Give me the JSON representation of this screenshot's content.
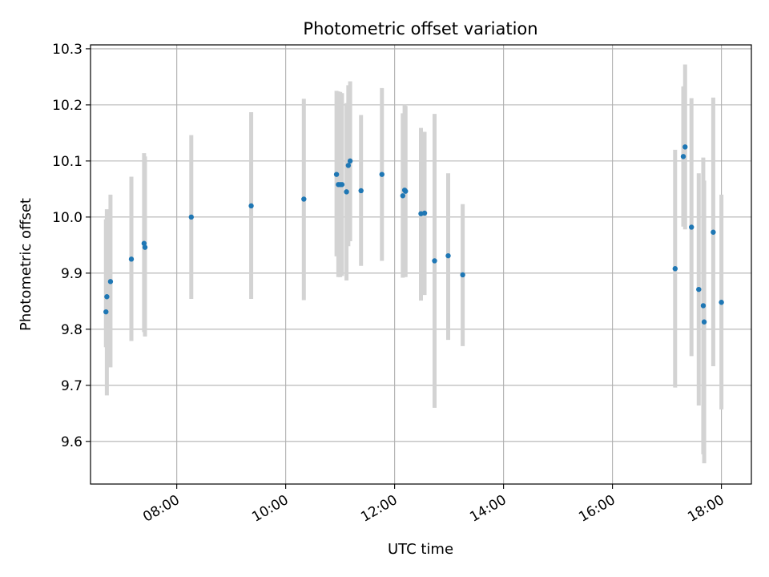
{
  "chart_data": {
    "type": "scatter",
    "title": "Photometric offset variation",
    "xlabel": "UTC time",
    "ylabel": "Photometric offset",
    "xlim": [
      "06:25",
      "18:33"
    ],
    "ylim": [
      9.524,
      10.307
    ],
    "x_ticks": [
      "08:00",
      "10:00",
      "12:00",
      "14:00",
      "16:00",
      "18:00"
    ],
    "y_ticks": [
      "9.6",
      "9.7",
      "9.8",
      "9.9",
      "10.0",
      "10.1",
      "10.2",
      "10.3"
    ],
    "grid": true,
    "colors": {
      "points": "#1f77b4",
      "errorbars": "#d3d3d3",
      "grid": "#b0b0b0"
    },
    "series": [
      {
        "points": [
          {
            "x": "06:42",
            "y": 9.831,
            "err_low": 9.768,
            "err_high": 9.996
          },
          {
            "x": "06:43",
            "y": 9.858,
            "err_low": 9.682,
            "err_high": 10.014
          },
          {
            "x": "06:47",
            "y": 9.885,
            "err_low": 9.732,
            "err_high": 10.04
          },
          {
            "x": "07:10",
            "y": 9.925,
            "err_low": 9.779,
            "err_high": 10.072
          },
          {
            "x": "07:24",
            "y": 9.953,
            "err_low": 9.795,
            "err_high": 10.114
          },
          {
            "x": "07:25",
            "y": 9.946,
            "err_low": 9.787,
            "err_high": 10.108
          },
          {
            "x": "08:16",
            "y": 10.0,
            "err_low": 9.854,
            "err_high": 10.146
          },
          {
            "x": "09:22",
            "y": 10.02,
            "err_low": 9.854,
            "err_high": 10.187
          },
          {
            "x": "10:20",
            "y": 10.032,
            "err_low": 9.852,
            "err_high": 10.211
          },
          {
            "x": "10:56",
            "y": 10.076,
            "err_low": 9.93,
            "err_high": 10.225
          },
          {
            "x": "10:58",
            "y": 10.058,
            "err_low": 9.893,
            "err_high": 10.224
          },
          {
            "x": "11:00",
            "y": 10.058,
            "err_low": 9.893,
            "err_high": 10.223
          },
          {
            "x": "11:02",
            "y": 10.058,
            "err_low": 9.895,
            "err_high": 10.221
          },
          {
            "x": "11:07",
            "y": 10.045,
            "err_low": 9.887,
            "err_high": 10.203
          },
          {
            "x": "11:09",
            "y": 10.092,
            "err_low": 9.948,
            "err_high": 10.235
          },
          {
            "x": "11:11",
            "y": 10.1,
            "err_low": 9.957,
            "err_high": 10.242
          },
          {
            "x": "11:23",
            "y": 10.047,
            "err_low": 9.913,
            "err_high": 10.182
          },
          {
            "x": "11:46",
            "y": 10.076,
            "err_low": 9.922,
            "err_high": 10.23
          },
          {
            "x": "12:09",
            "y": 10.038,
            "err_low": 9.892,
            "err_high": 10.185
          },
          {
            "x": "12:11",
            "y": 10.048,
            "err_low": 9.895,
            "err_high": 10.2
          },
          {
            "x": "12:12",
            "y": 10.046,
            "err_low": 9.893,
            "err_high": 10.198
          },
          {
            "x": "12:29",
            "y": 10.006,
            "err_low": 9.851,
            "err_high": 10.159
          },
          {
            "x": "12:33",
            "y": 10.007,
            "err_low": 9.861,
            "err_high": 10.152
          },
          {
            "x": "12:44",
            "y": 9.922,
            "err_low": 9.66,
            "err_high": 10.184
          },
          {
            "x": "12:59",
            "y": 9.931,
            "err_low": 9.781,
            "err_high": 10.078
          },
          {
            "x": "13:15",
            "y": 9.897,
            "err_low": 9.77,
            "err_high": 10.023
          },
          {
            "x": "17:09",
            "y": 9.908,
            "err_low": 9.696,
            "err_high": 10.12
          },
          {
            "x": "17:18",
            "y": 10.108,
            "err_low": 9.983,
            "err_high": 10.233
          },
          {
            "x": "17:20",
            "y": 10.125,
            "err_low": 9.978,
            "err_high": 10.272
          },
          {
            "x": "17:27",
            "y": 9.982,
            "err_low": 9.752,
            "err_high": 10.212
          },
          {
            "x": "17:35",
            "y": 9.871,
            "err_low": 9.664,
            "err_high": 10.078
          },
          {
            "x": "17:40",
            "y": 9.842,
            "err_low": 9.577,
            "err_high": 10.106
          },
          {
            "x": "17:41",
            "y": 9.813,
            "err_low": 9.561,
            "err_high": 10.065
          },
          {
            "x": "17:51",
            "y": 9.973,
            "err_low": 9.734,
            "err_high": 10.213
          },
          {
            "x": "18:00",
            "y": 9.848,
            "err_low": 9.657,
            "err_high": 10.04
          }
        ]
      }
    ]
  }
}
